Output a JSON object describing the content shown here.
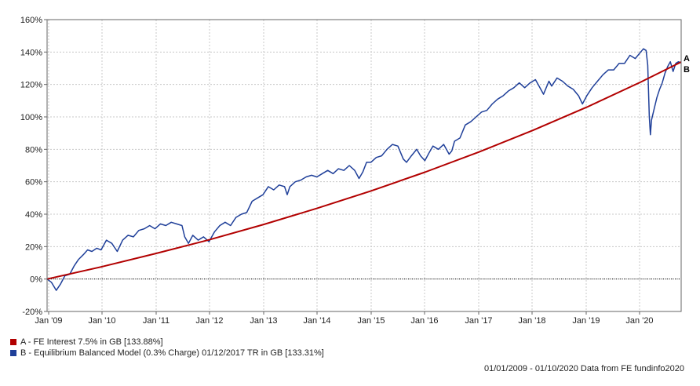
{
  "chart_data": {
    "type": "line",
    "title": "",
    "xlabel": "",
    "ylabel": "",
    "ylim": [
      -20,
      160
    ],
    "y_ticks": [
      -20,
      0,
      20,
      40,
      60,
      80,
      100,
      120,
      140,
      160
    ],
    "y_tick_labels": [
      "-20%",
      "0%",
      "20%",
      "40%",
      "60%",
      "80%",
      "100%",
      "120%",
      "140%",
      "160%"
    ],
    "x_tick_labels": [
      "Jan '09",
      "Jan '10",
      "Jan '11",
      "Jan '12",
      "Jan '13",
      "Jan '14",
      "Jan '15",
      "Jan '16",
      "Jan '17",
      "Jan '18",
      "Jan '19",
      "Jan '20"
    ],
    "xlim": [
      2009.0,
      2020.75
    ],
    "grid": true,
    "zero_line": true,
    "legend_position": "bottom-left",
    "series": [
      {
        "name": "A - FE Interest 7.5% in GB [133.88%]",
        "end_label": "A",
        "color": "#b20000",
        "x": [
          2009.0,
          2010.0,
          2011.0,
          2012.0,
          2013.0,
          2014.0,
          2015.0,
          2016.0,
          2017.0,
          2018.0,
          2019.0,
          2020.0,
          2020.75
        ],
        "y": [
          0,
          7.5,
          15.6,
          24.2,
          33.5,
          43.6,
          54.3,
          65.9,
          78.3,
          91.7,
          106.0,
          121.5,
          133.88
        ]
      },
      {
        "name": "B - Equilibrium Balanced Model (0.3% Charge) 01/12/2017 TR in GB [133.31%]",
        "end_label": "B",
        "color": "#1f3f99",
        "x": [
          2009.0,
          2009.08,
          2009.17,
          2009.25,
          2009.33,
          2009.42,
          2009.5,
          2009.58,
          2009.67,
          2009.75,
          2009.83,
          2009.92,
          2010.0,
          2010.1,
          2010.2,
          2010.3,
          2010.4,
          2010.5,
          2010.6,
          2010.7,
          2010.8,
          2010.9,
          2011.0,
          2011.1,
          2011.2,
          2011.3,
          2011.4,
          2011.5,
          2011.55,
          2011.62,
          2011.7,
          2011.8,
          2011.9,
          2012.0,
          2012.1,
          2012.2,
          2012.3,
          2012.4,
          2012.5,
          2012.6,
          2012.7,
          2012.8,
          2012.9,
          2013.0,
          2013.1,
          2013.2,
          2013.3,
          2013.4,
          2013.45,
          2013.5,
          2013.6,
          2013.7,
          2013.8,
          2013.9,
          2014.0,
          2014.1,
          2014.2,
          2014.3,
          2014.4,
          2014.5,
          2014.6,
          2014.7,
          2014.78,
          2014.85,
          2014.92,
          2015.0,
          2015.1,
          2015.2,
          2015.3,
          2015.4,
          2015.5,
          2015.6,
          2015.66,
          2015.75,
          2015.85,
          2015.92,
          2016.0,
          2016.08,
          2016.15,
          2016.25,
          2016.35,
          2016.45,
          2016.5,
          2016.55,
          2016.65,
          2016.75,
          2016.85,
          2016.95,
          2017.05,
          2017.15,
          2017.25,
          2017.35,
          2017.45,
          2017.55,
          2017.65,
          2017.75,
          2017.85,
          2017.95,
          2018.05,
          2018.1,
          2018.2,
          2018.3,
          2018.35,
          2018.45,
          2018.55,
          2018.65,
          2018.75,
          2018.85,
          2018.92,
          2019.0,
          2019.1,
          2019.2,
          2019.3,
          2019.4,
          2019.5,
          2019.6,
          2019.7,
          2019.8,
          2019.9,
          2020.0,
          2020.05,
          2020.1,
          2020.13,
          2020.16,
          2020.18,
          2020.2,
          2020.25,
          2020.3,
          2020.35,
          2020.4,
          2020.45,
          2020.5,
          2020.55,
          2020.6,
          2020.65,
          2020.7,
          2020.75
        ],
        "y": [
          0,
          -2,
          -7,
          -3,
          2,
          3,
          8,
          12,
          15,
          18,
          17,
          19,
          18,
          24,
          22,
          17,
          24,
          27,
          26,
          30,
          31,
          33,
          31,
          34,
          33,
          35,
          34,
          33,
          26,
          22,
          27,
          24,
          26,
          23,
          29,
          33,
          35,
          33,
          38,
          40,
          41,
          48,
          50,
          52,
          57,
          55,
          58,
          57,
          52,
          57,
          60,
          61,
          63,
          64,
          63,
          65,
          67,
          65,
          68,
          67,
          70,
          67,
          62,
          66,
          72,
          72,
          75,
          76,
          80,
          83,
          82,
          74,
          72,
          76,
          80,
          76,
          73,
          78,
          82,
          80,
          83,
          77,
          79,
          85,
          87,
          95,
          97,
          100,
          103,
          104,
          108,
          111,
          113,
          116,
          118,
          121,
          118,
          121,
          123,
          120,
          114,
          122,
          119,
          124,
          122,
          119,
          117,
          113,
          108,
          113,
          118,
          122,
          126,
          129,
          129,
          133,
          133,
          138,
          136,
          140,
          142,
          141,
          132,
          100,
          89,
          98,
          105,
          112,
          117,
          121,
          127,
          131,
          134,
          128,
          133,
          134,
          133.31
        ]
      }
    ]
  },
  "footer": {
    "text": "01/01/2009 - 01/10/2020 Data from FE fundinfo2020"
  }
}
